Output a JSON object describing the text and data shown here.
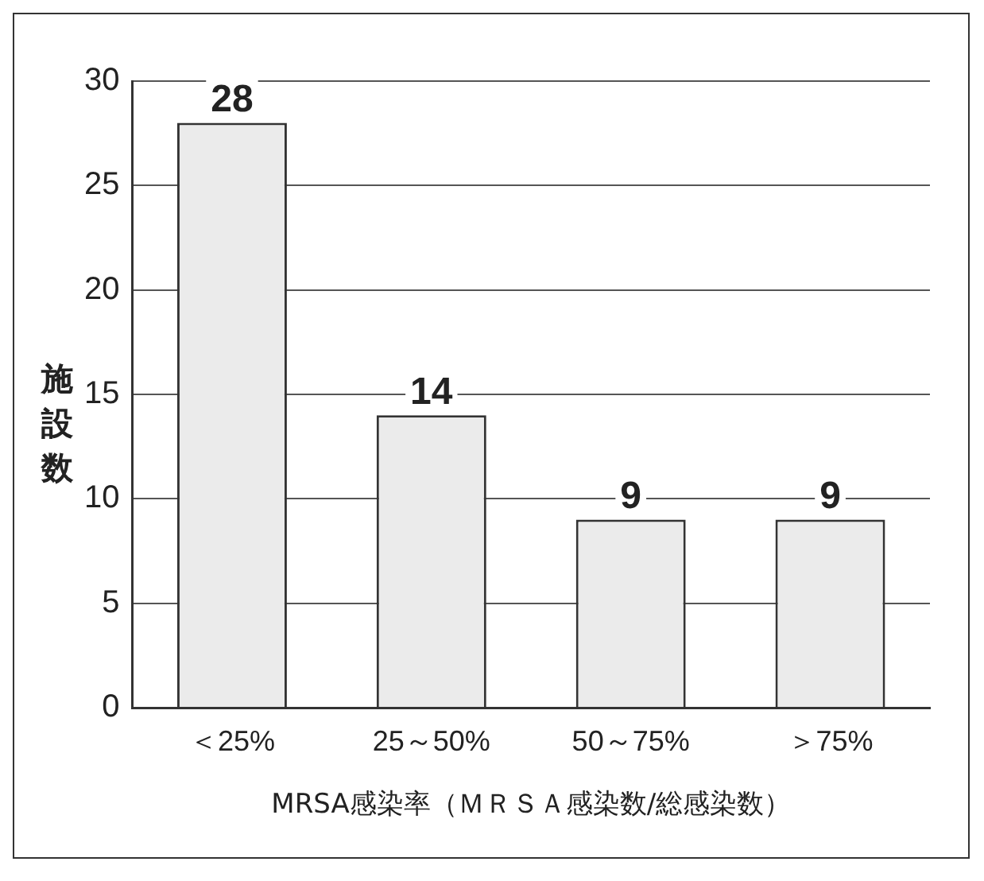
{
  "chart_data": {
    "type": "bar",
    "ylabel": "施設数",
    "xlabel": "MRSA感染率（ＭＲＳＡ感染数/総感染数）",
    "categories": [
      "＜25%",
      "25～50%",
      "50～75%",
      "＞75%"
    ],
    "values": [
      28,
      14,
      9,
      9
    ],
    "color": "#ebebeb",
    "ylim": [
      0,
      30
    ],
    "yticks": [
      0,
      5,
      10,
      15,
      20,
      25,
      30
    ],
    "grid": "y",
    "data_labels": true,
    "legend": false
  }
}
